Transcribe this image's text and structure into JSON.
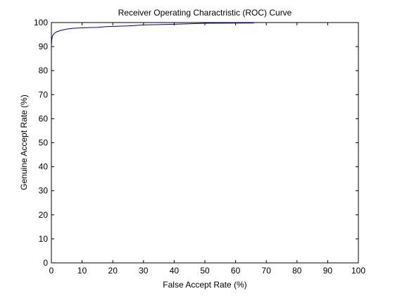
{
  "chart_data": {
    "type": "line",
    "title": "Receiver Operating Charactristic (ROC) Curve",
    "xlabel": "False Accept Rate (%)",
    "ylabel": "Genuine Accept Rate (%)",
    "xlim": [
      0,
      100
    ],
    "ylim": [
      0,
      100
    ],
    "x_ticks": [
      0,
      10,
      20,
      30,
      40,
      50,
      60,
      70,
      80,
      90,
      100
    ],
    "y_ticks": [
      0,
      10,
      20,
      30,
      40,
      50,
      60,
      70,
      80,
      90,
      100
    ],
    "grid": false,
    "series": [
      {
        "color": "#00007f",
        "x": [
          0,
          0.1,
          0.2,
          0.4,
          0.6,
          1.0,
          1.5,
          2.0,
          3.0,
          4.0,
          5.0,
          7.0,
          10.0,
          15.0,
          18.0,
          25.0,
          30.0,
          40.0,
          45.0,
          50.0,
          66.0
        ],
        "y": [
          90.0,
          92.5,
          93.5,
          94.5,
          95.0,
          95.5,
          96.0,
          96.3,
          96.7,
          97.0,
          97.3,
          97.6,
          97.8,
          98.0,
          98.3,
          98.6,
          99.0,
          99.3,
          99.5,
          99.7,
          99.8
        ]
      }
    ]
  }
}
